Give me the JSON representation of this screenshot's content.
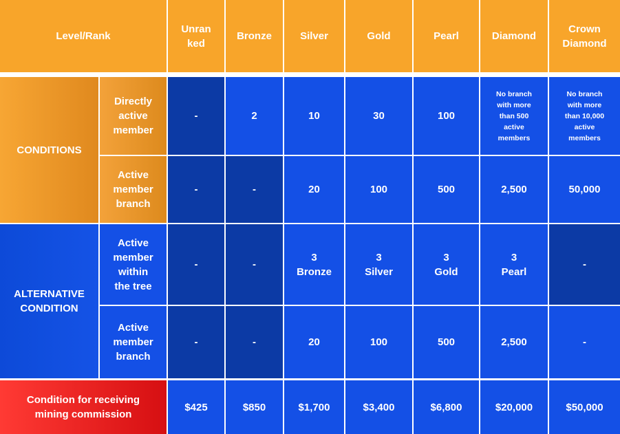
{
  "header": {
    "level_rank": "Level/Rank",
    "ranks": [
      "Unran\nked",
      "Bronze",
      "Silver",
      "Gold",
      "Pearl",
      "Diamond",
      "Crown\nDiamond"
    ]
  },
  "groups": {
    "conditions": "CONDITIONS",
    "alternative": "ALTERNATIVE\nCONDITION"
  },
  "rows": [
    {
      "label": "Directly\nactive\nmember",
      "values": [
        "-",
        "2",
        "10",
        "30",
        "100",
        "No branch\nwith more\nthan 500\nactive\nmembers",
        "No branch\nwith more\nthan 10,000\nactive\nmembers"
      ]
    },
    {
      "label": "Active\nmember\nbranch",
      "values": [
        "-",
        "-",
        "20",
        "100",
        "500",
        "2,500",
        "50,000"
      ]
    },
    {
      "label": "Active\nmember\nwithin\nthe tree",
      "values": [
        "-",
        "-",
        "3\nBronze",
        "3\nSilver",
        "3\nGold",
        "3\nPearl",
        "-"
      ]
    },
    {
      "label": "Active\nmember\nbranch",
      "values": [
        "-",
        "-",
        "20",
        "100",
        "500",
        "2,500",
        "-"
      ]
    }
  ],
  "commission": {
    "label": "Condition for receiving\nmining commission",
    "values": [
      "$425",
      "$850",
      "$1,700",
      "$3,400",
      "$6,800",
      "$20,000",
      "$50,000"
    ]
  },
  "colors": {
    "orange": "#f8a52a",
    "blue": "#1450e6",
    "blue_dark": "#0c3aa5",
    "red": "#e0191b"
  }
}
